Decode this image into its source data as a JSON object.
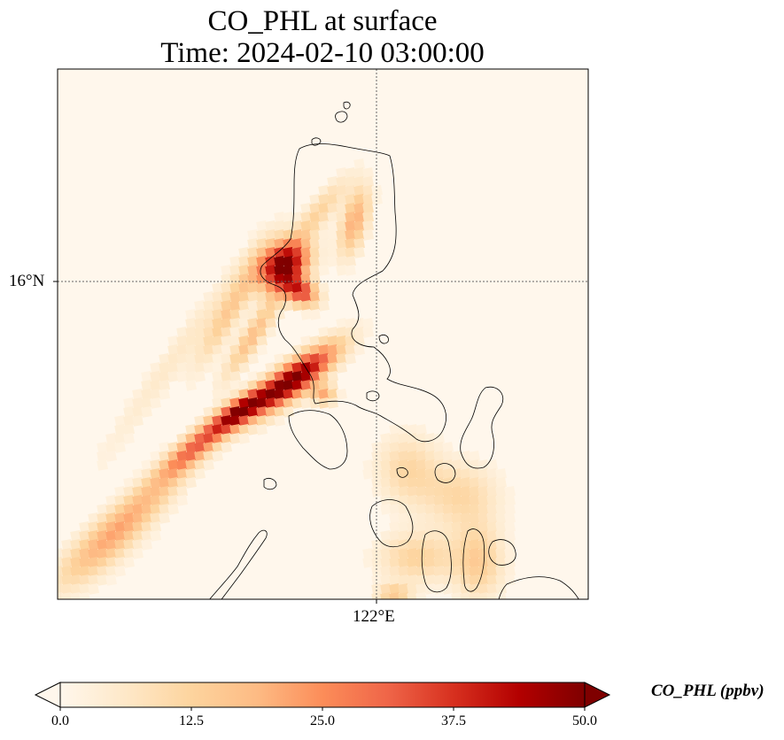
{
  "title": {
    "line1": "CO_PHL at surface",
    "line2": "Time: 2024-02-10 03:00:00"
  },
  "axes": {
    "lat_label": "16°N",
    "lon_label": "122°E"
  },
  "colorbar": {
    "label": "CO_PHL (ppbv)",
    "ticks": [
      "0.0",
      "12.5",
      "25.0",
      "37.5",
      "50.0"
    ],
    "vmin": 0,
    "vmax": 50,
    "colormap": "OrRd",
    "extend": "both"
  },
  "chart_data": {
    "type": "heatmap",
    "variable": "CO_PHL",
    "units": "ppbv",
    "level": "surface",
    "time": "2024-02-10 03:00:00",
    "gridlines": true,
    "map_features": [
      "coastlines"
    ],
    "color_scale": [
      "#fff7ec",
      "#fee8c8",
      "#fdd49e",
      "#fdbb84",
      "#fc8d59",
      "#ef6548",
      "#d7301f",
      "#b30000",
      "#7f0000"
    ]
  }
}
